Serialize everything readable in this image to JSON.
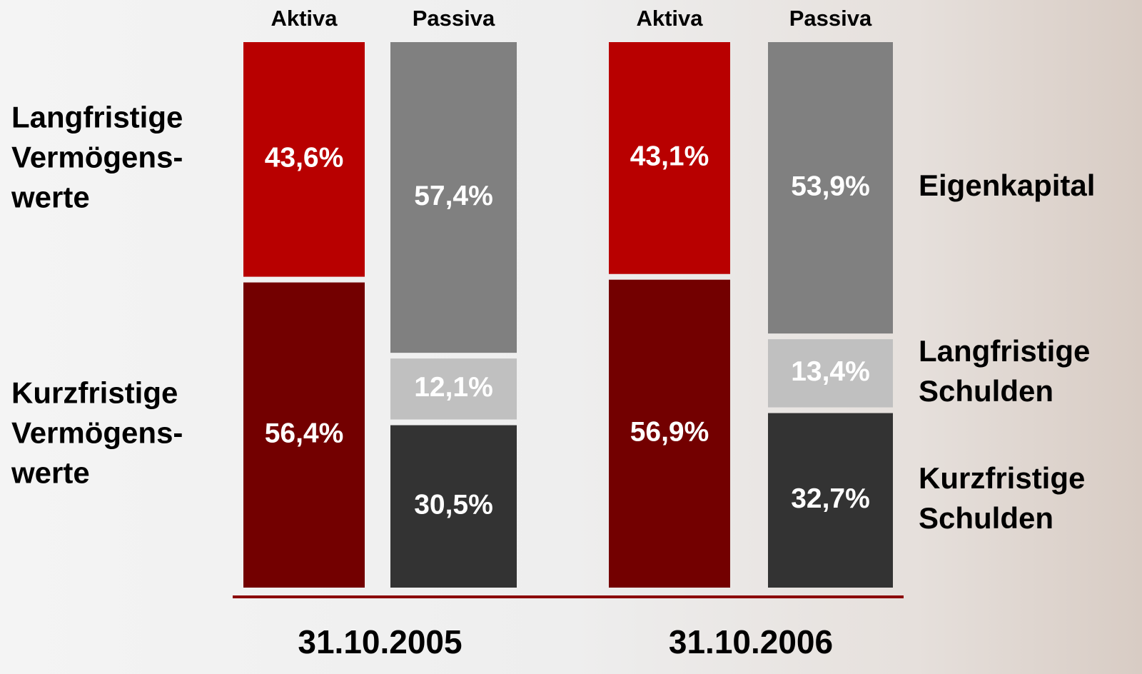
{
  "chart_data": {
    "type": "stacked-bar",
    "categories": [
      "Aktiva",
      "Passiva",
      "Aktiva",
      "Passiva"
    ],
    "group_labels": [
      "31.10.2005",
      "31.10.2006"
    ],
    "series": [
      {
        "name": "Kurzfristige\nVermögens-\nwerte",
        "color": "#730000",
        "values": [
          56.4,
          null,
          56.9,
          null
        ],
        "value_labels": [
          "56,4%",
          null,
          "56,9%",
          null
        ]
      },
      {
        "name": "Langfristige\nVermögens-\nwerte",
        "color": "#b80000",
        "values": [
          43.6,
          null,
          43.1,
          null
        ],
        "value_labels": [
          "43,6%",
          null,
          "43,1%",
          null
        ]
      },
      {
        "name": "Kurzfristige\nSchulden",
        "color": "#333333",
        "values": [
          null,
          30.5,
          null,
          32.7
        ],
        "value_labels": [
          null,
          "30,5%",
          null,
          "32,7%"
        ]
      },
      {
        "name": "Langfristige\nSchulden",
        "color": "#c0c0c0",
        "values": [
          null,
          12.1,
          null,
          13.4
        ],
        "value_labels": [
          null,
          "12,1%",
          null,
          "13,4%"
        ]
      },
      {
        "name": "Eigenkapital",
        "color": "#808080",
        "values": [
          null,
          57.4,
          null,
          53.9
        ],
        "value_labels": [
          null,
          "57,4%",
          null,
          "53,9%"
        ]
      }
    ]
  }
}
